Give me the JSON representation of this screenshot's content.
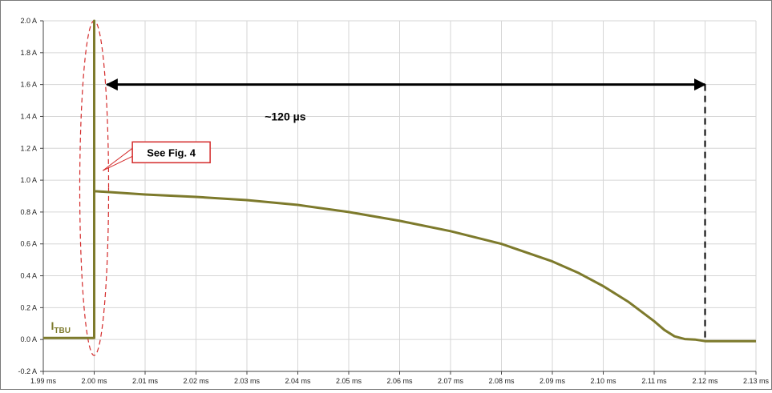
{
  "colors": {
    "trace": "#7d7a2c",
    "annotation_red": "#d42a2a",
    "arrow": "#000000",
    "grid": "#d6d6d6"
  },
  "chart_data": {
    "type": "line",
    "title": "",
    "xlabel": "",
    "ylabel": "",
    "x_unit": "ms",
    "y_unit": "A",
    "xlim": [
      1.99,
      2.13
    ],
    "ylim": [
      -0.2,
      2.0
    ],
    "grid": true,
    "x_tick_values": [
      1.99,
      2.0,
      2.01,
      2.02,
      2.03,
      2.04,
      2.05,
      2.06,
      2.07,
      2.08,
      2.09,
      2.1,
      2.11,
      2.12,
      2.13
    ],
    "x_tick_labels": [
      "1.99 ms",
      "2.00 ms",
      "2.01 ms",
      "2.02 ms",
      "2.03 ms",
      "2.04 ms",
      "2.05 ms",
      "2.06 ms",
      "2.07 ms",
      "2.08 ms",
      "2.09 ms",
      "2.10 ms",
      "2.11 ms",
      "2.12 ms",
      "2.13 ms"
    ],
    "y_tick_values": [
      -0.2,
      0.0,
      0.2,
      0.4,
      0.6,
      0.8,
      1.0,
      1.2,
      1.4,
      1.6,
      1.8,
      2.0
    ],
    "y_tick_labels": [
      "-0.2 A",
      "0.0 A",
      "0.2 A",
      "0.4 A",
      "0.6 A",
      "0.8 A",
      "1.0 A",
      "1.2 A",
      "1.4 A",
      "1.6 A",
      "1.8 A",
      "2.0 A"
    ],
    "series": [
      {
        "label_main": "I",
        "label_sub": "TBU",
        "x": [
          1.99,
          2.0,
          2.0,
          2.0,
          2.0005,
          2.01,
          2.02,
          2.03,
          2.04,
          2.05,
          2.06,
          2.07,
          2.08,
          2.09,
          2.095,
          2.1,
          2.105,
          2.11,
          2.112,
          2.114,
          2.116,
          2.118,
          2.12,
          2.13
        ],
        "y": [
          0.01,
          0.01,
          2.0,
          0.93,
          0.93,
          0.91,
          0.895,
          0.875,
          0.845,
          0.8,
          0.745,
          0.68,
          0.6,
          0.49,
          0.42,
          0.335,
          0.235,
          0.115,
          0.06,
          0.02,
          0.003,
          0.0,
          -0.01,
          -0.01
        ]
      }
    ],
    "annotations": {
      "duration_label": "~120 µs",
      "duration_start": 2.0025,
      "duration_end": 2.12,
      "duration_level": 1.6,
      "callout_label": "See Fig. 4"
    }
  }
}
